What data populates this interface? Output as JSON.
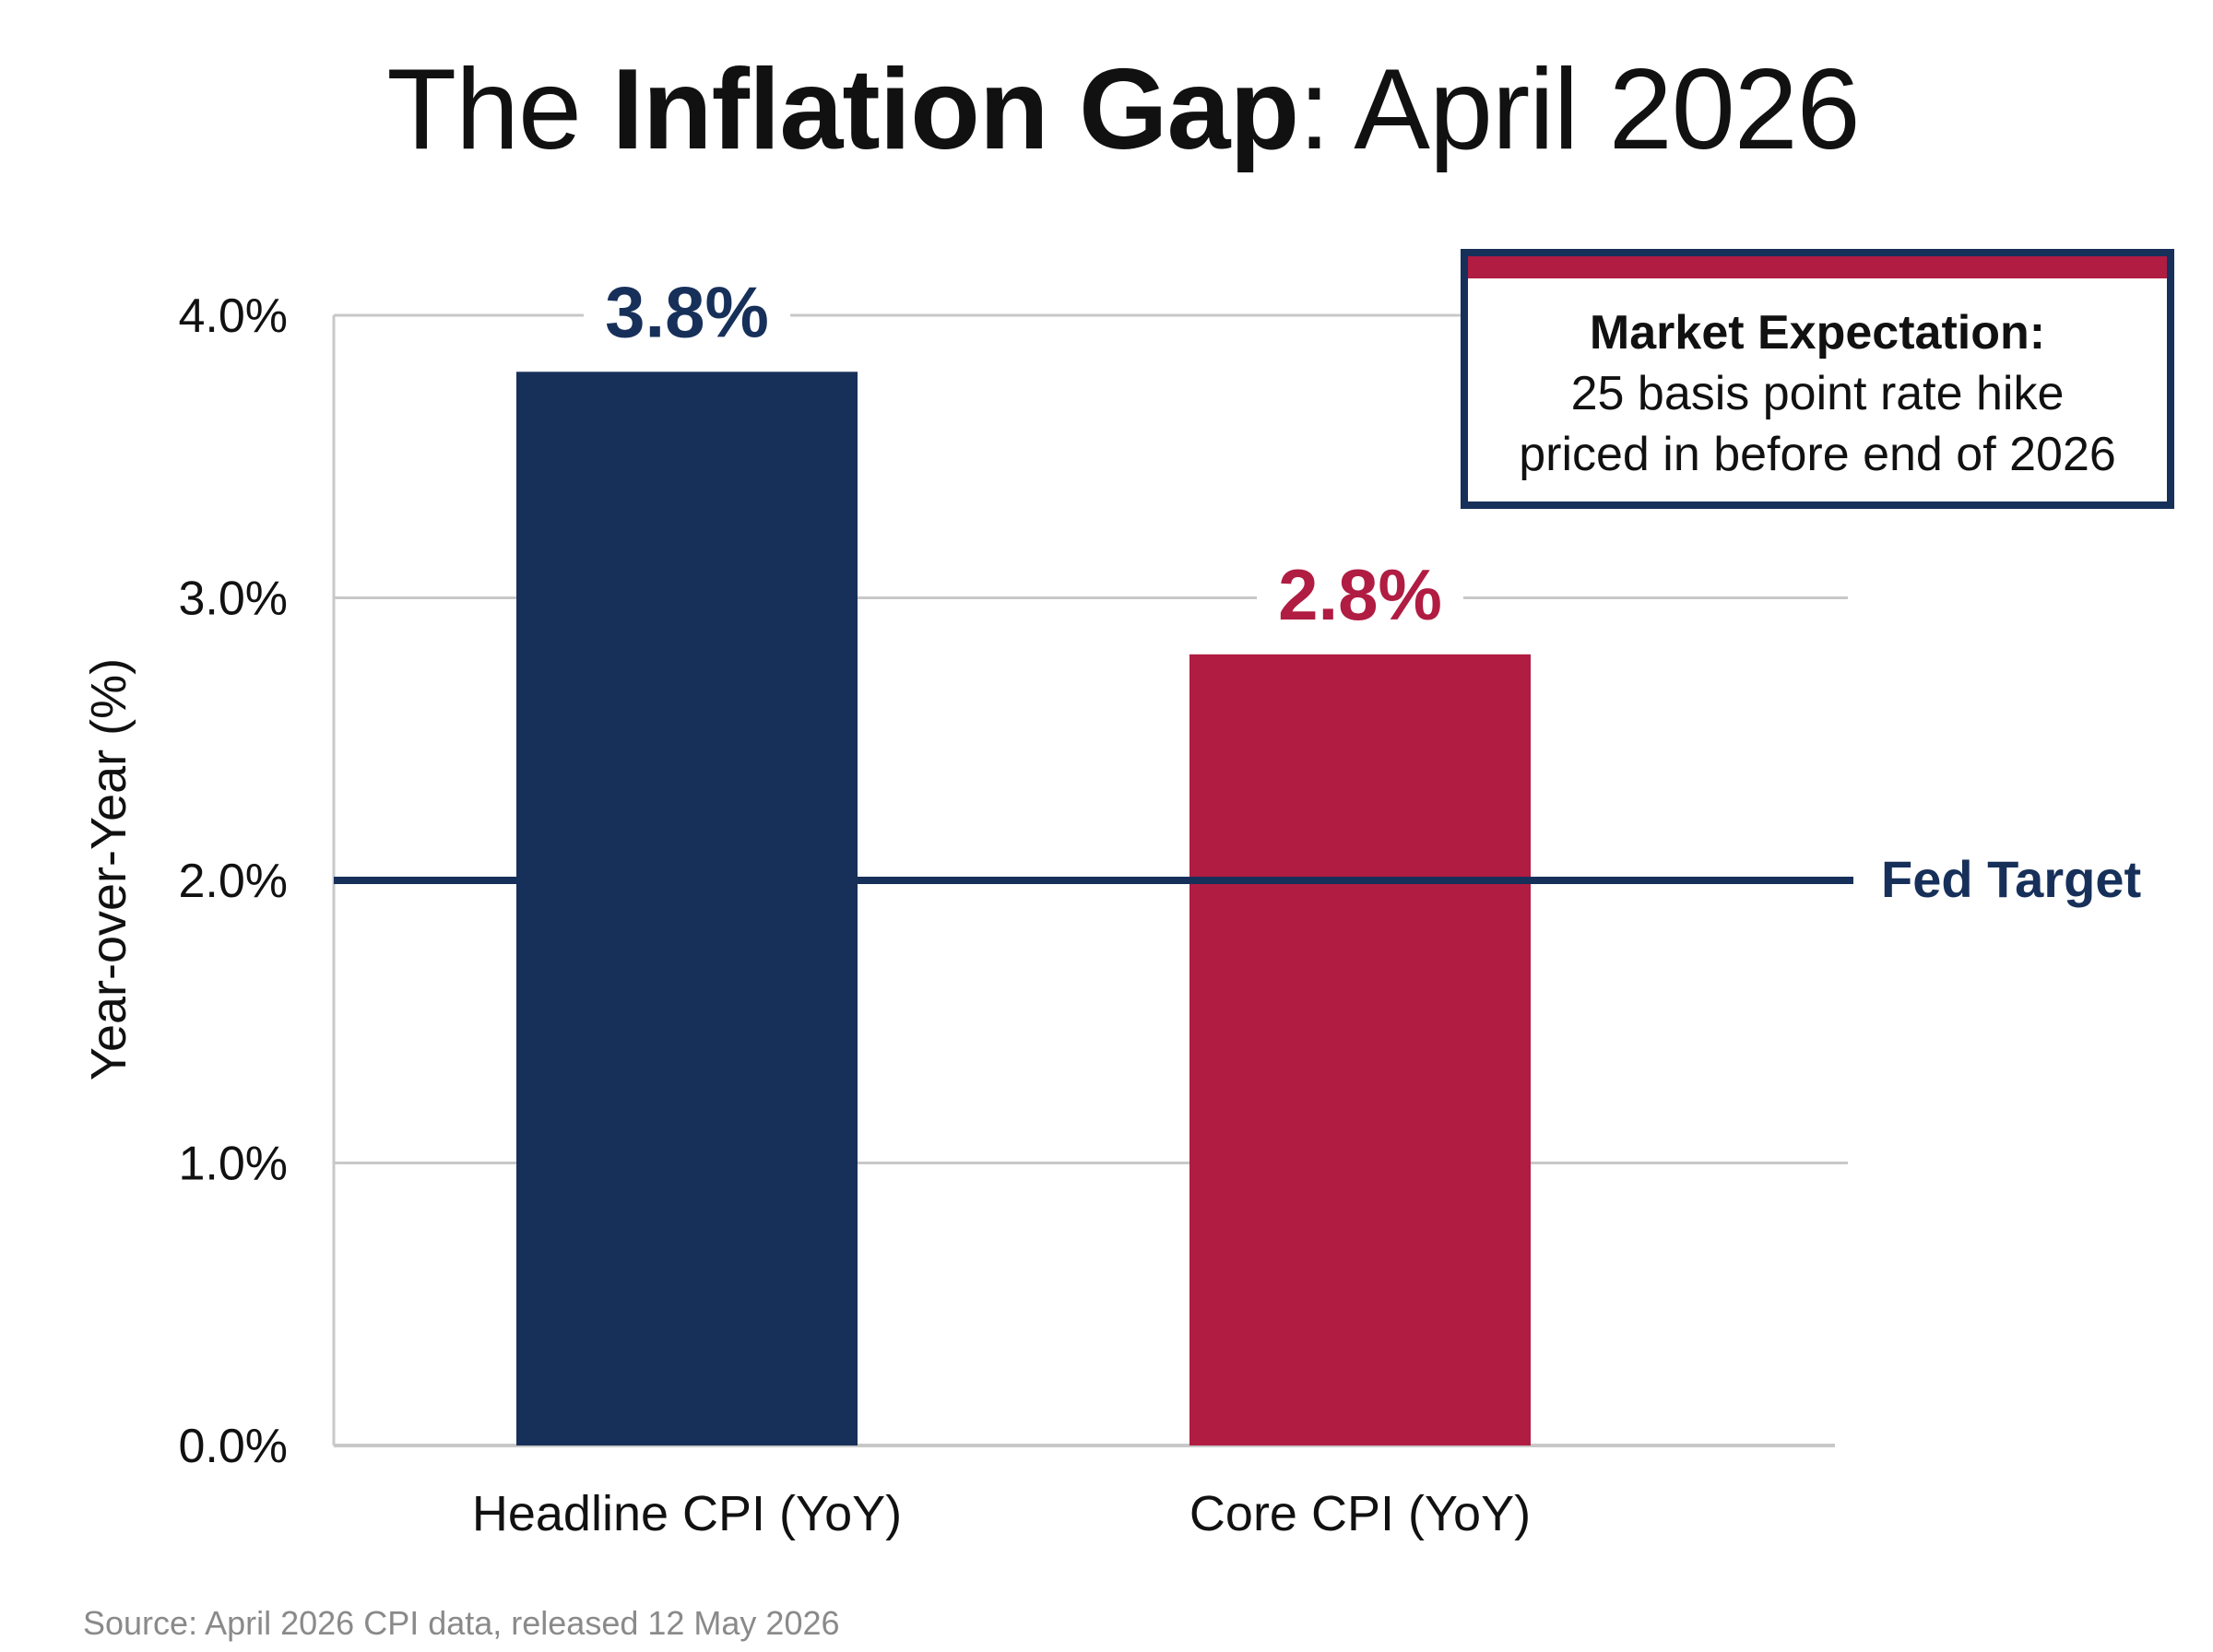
{
  "title": {
    "part1": "The ",
    "bold": "Inflation Gap",
    "part2": ": April 2026"
  },
  "callout": {
    "heading": "Market Expectation:",
    "body": "25 basis point rate hike\npriced in before end of 2026"
  },
  "source": "Source: April 2026 CPI data, released 12 May 2026",
  "colors": {
    "navy": "#17305a",
    "crimson": "#b01c42",
    "grid": "#c8c8c8",
    "text": "#111111",
    "muted": "#8a8a8a"
  },
  "chart_data": {
    "type": "bar",
    "title": "The Inflation Gap: April 2026",
    "categories": [
      "Headline CPI (YoY)",
      "Core CPI (YoY)"
    ],
    "values": [
      3.8,
      2.8
    ],
    "value_labels": [
      "3.8%",
      "2.8%"
    ],
    "bar_colors": [
      "#17305a",
      "#b01c42"
    ],
    "ylabel": "Year-over-Year (%)",
    "ylim": [
      0,
      4
    ],
    "yticks": [
      0,
      1,
      2,
      3,
      4
    ],
    "ytick_labels": [
      "0.0%",
      "1.0%",
      "2.0%",
      "3.0%",
      "4.0%"
    ],
    "grid": true,
    "reference_line": {
      "value": 2.0,
      "label": "Fed Target",
      "color": "#17305a"
    }
  }
}
